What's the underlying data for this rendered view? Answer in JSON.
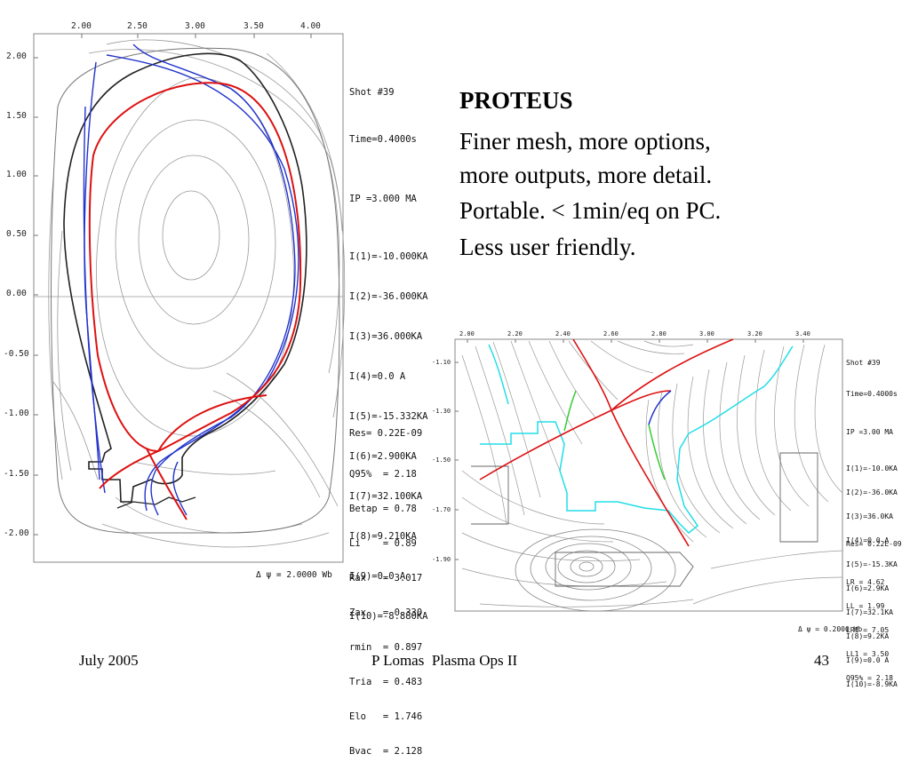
{
  "slide": {
    "title": "PROTEUS",
    "bullets": [
      "Finer mesh, more options,",
      "more outputs, more detail.",
      "Portable. < 1min/eq on PC.",
      "Less user friendly."
    ],
    "footer": {
      "date": "July 2005",
      "center": "P Lomas  Plasma Ops II",
      "page": "43"
    }
  },
  "plot_main": {
    "x_ticks": [
      "2.00",
      "2.50",
      "3.00",
      "3.50",
      "4.00"
    ],
    "y_ticks": [
      "2.00",
      "1.50",
      "1.00",
      "0.50",
      "0.00",
      "-0.50",
      "-1.00",
      "-1.50",
      "-2.00"
    ],
    "info_top": [
      "Shot #39",
      "Time=0.4000s",
      "",
      "IP =3.000 MA",
      "",
      "I(1)=-10.000KA",
      "I(2)=-36.000KA",
      "I(3)=36.000KA",
      "I(4)=0.0 A",
      "I(5)=-15.332KA",
      "I(6)=2.900KA",
      "I(7)=32.100KA",
      "I(8)=9.210KA",
      "I(9)=0.0 A",
      "I(10)=-8.880KA"
    ],
    "info_bottom": [
      "Res= 0.22E-09",
      "",
      "Q95%  = 2.18",
      "Betap = 0.78",
      "Li    = 0.89",
      "Rax   = 3.017",
      "Zax   = 0.330",
      "rmin  = 0.897",
      "Tria  = 0.483",
      "Elo   = 1.746",
      "Bvac  = 2.128"
    ],
    "delta_psi": "Δ ψ = 2.0000 Wb"
  },
  "plot_zoom": {
    "x_ticks": [
      "2.00",
      "2.20",
      "2.40",
      "2.60",
      "2.80",
      "3.00",
      "3.20",
      "3.40"
    ],
    "y_ticks": [
      "-1.10",
      "-1.30",
      "-1.50",
      "-1.70",
      "-1.90"
    ],
    "info_top": [
      "Shot #39",
      "Time=0.4000s",
      "",
      "IP =3.00 MA",
      "",
      "I(1)=-10.0KA",
      "I(2)=-36.0KA",
      "I(3)=36.0KA",
      "I(4)=0.0 A",
      "I(5)=-15.3KA",
      "I(6)=2.9KA",
      "I(7)=32.1KA",
      "I(8)=9.2KA",
      "I(9)=0.0 A",
      "I(10)=-8.9KA"
    ],
    "info_bottom": [
      "Res= 0.22E-09",
      "",
      "LR = 4.62",
      "LL = 1.99",
      "LR1 = 7.05",
      "LL1 = 3.50",
      "Q95% = 2.18"
    ],
    "delta_psi": "Δ ψ = 0.2000 Wb"
  },
  "colors": {
    "separatrix": "#dd1111",
    "flux_blue": "#2233cc",
    "limiter": "#222222",
    "grid": "#9a9a9a",
    "cyan": "#22dde8",
    "green": "#33cc33"
  }
}
